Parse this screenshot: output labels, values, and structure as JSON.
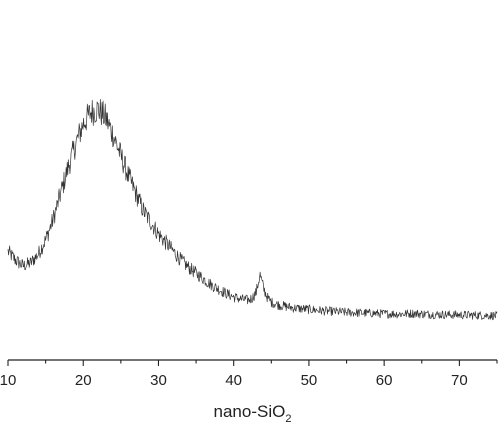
{
  "chart_data": {
    "type": "line",
    "title": "",
    "xlabel": "nano-SiO",
    "xlabel_subscript": "2",
    "ylabel": "",
    "xlim": [
      10,
      75
    ],
    "ylim": [
      0,
      100
    ],
    "y_axis_shown": false,
    "grid": false,
    "x_ticks": [
      10,
      20,
      30,
      40,
      50,
      60,
      70
    ],
    "x_tick_labels": [
      "10",
      "20",
      "30",
      "40",
      "50",
      "60",
      "70"
    ],
    "series": [
      {
        "color": "#333333",
        "x": [
          10,
          11,
          12,
          13,
          14,
          15,
          16,
          17,
          18,
          19,
          20,
          21,
          22,
          23,
          24,
          25,
          26,
          27,
          28,
          29,
          30,
          31,
          32,
          33,
          34,
          35,
          36,
          37,
          38,
          39,
          40,
          41,
          42,
          42.5,
          43,
          43.5,
          44,
          44.5,
          45,
          46,
          48,
          50,
          52,
          55,
          58,
          60,
          62,
          64,
          66,
          68,
          70,
          72,
          74,
          75
        ],
        "y": [
          34,
          31,
          29,
          30,
          33,
          38,
          45,
          54,
          63,
          71,
          78,
          82,
          83,
          80,
          74,
          67,
          60,
          54,
          48,
          44,
          40,
          37,
          34,
          31,
          28.5,
          26.5,
          24.5,
          22.5,
          21,
          19.5,
          18.3,
          17.5,
          17.2,
          18,
          20,
          26,
          21,
          18,
          16.5,
          15.5,
          14.5,
          14,
          13.5,
          13,
          12.7,
          12.5,
          12.4,
          12.6,
          12.3,
          12.2,
          12.1,
          12,
          11.9,
          11.8
        ]
      }
    ]
  }
}
